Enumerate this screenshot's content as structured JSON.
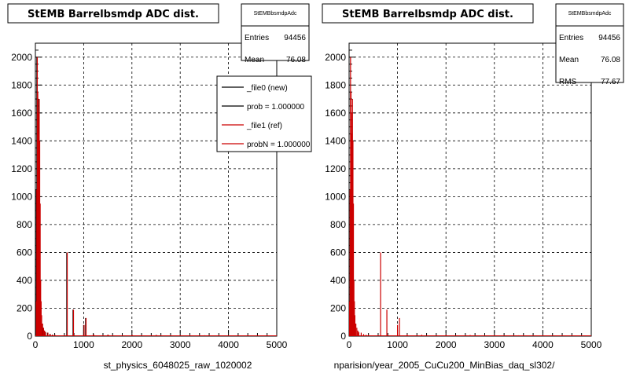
{
  "panels": [
    {
      "title": "StEMB Barrelbsmdp ADC dist.",
      "footer": "st_physics_6048025_raw_1020002",
      "stats": {
        "header": "StEMBbsmdpAdc",
        "rows": [
          {
            "label": "Entries",
            "value": "94456"
          },
          {
            "label": "Mean",
            "value": "76.08"
          }
        ]
      },
      "legend": [
        {
          "label": "_file0 (new)",
          "color": "#000000"
        },
        {
          "label": "prob = 1.000000",
          "color": "#000000"
        },
        {
          "label": "_file1 (ref)",
          "color": "#cc0000"
        },
        {
          "label": "probN = 1.000000",
          "color": "#cc0000"
        }
      ]
    },
    {
      "title": "StEMB Barrelbsmdp ADC dist.",
      "footer": "nparision/year_2005_CuCu200_MinBias_daq_sl302/",
      "stats": {
        "header": "StEMBbsmdpAdc",
        "rows": [
          {
            "label": "Entries",
            "value": "94456"
          },
          {
            "label": "Mean",
            "value": "76.08"
          },
          {
            "label": "RMS",
            "value": "77.67"
          }
        ]
      },
      "legend": []
    }
  ],
  "chart_data": [
    {
      "type": "bar",
      "title": "StEMB Barrelbsmdp ADC dist.",
      "xlabel": "st_physics_6048025_raw_1020002",
      "ylabel": "",
      "xlim": [
        0,
        5000
      ],
      "ylim": [
        0,
        2100
      ],
      "xticks": [
        0,
        1000,
        2000,
        3000,
        4000,
        5000
      ],
      "yticks": [
        0,
        200,
        400,
        600,
        800,
        1000,
        1200,
        1400,
        1600,
        1800,
        2000
      ],
      "grid": true,
      "series": [
        {
          "name": "_file0 (new)",
          "color": "#000000",
          "x": [
            10,
            20,
            30,
            40,
            50,
            60,
            70,
            80,
            90,
            100,
            110,
            120,
            140,
            160,
            180,
            200,
            250,
            300,
            350,
            400,
            650,
            780,
            1000,
            1040,
            1200,
            1500,
            2000,
            2500,
            3000,
            3500,
            4000,
            4500
          ],
          "y": [
            250,
            1050,
            2000,
            1750,
            1600,
            1450,
            1700,
            1400,
            950,
            400,
            250,
            150,
            90,
            60,
            40,
            30,
            25,
            15,
            10,
            8,
            600,
            190,
            80,
            130,
            12,
            10,
            8,
            8,
            6,
            6,
            5,
            5
          ]
        },
        {
          "name": "_file1 (ref)",
          "color": "#cc0000",
          "x": [
            10,
            20,
            30,
            40,
            50,
            60,
            70,
            80,
            90,
            100,
            110,
            120,
            140,
            160,
            180,
            200,
            250,
            300,
            350,
            400,
            650,
            780,
            1000,
            1040,
            1200,
            1500,
            2000,
            2500,
            3000,
            3500,
            4000,
            4500
          ],
          "y": [
            250,
            1050,
            2000,
            1750,
            1600,
            1450,
            1700,
            1400,
            950,
            400,
            250,
            150,
            90,
            60,
            40,
            30,
            25,
            15,
            10,
            8,
            600,
            190,
            80,
            130,
            12,
            10,
            8,
            8,
            6,
            6,
            5,
            5
          ]
        }
      ]
    },
    {
      "type": "bar",
      "title": "StEMB Barrelbsmdp ADC dist.",
      "xlabel": "nparision/year_2005_CuCu200_MinBias_daq_sl302/",
      "ylabel": "",
      "xlim": [
        0,
        5000
      ],
      "ylim": [
        0,
        2100
      ],
      "xticks": [
        0,
        1000,
        2000,
        3000,
        4000,
        5000
      ],
      "yticks": [
        0,
        200,
        400,
        600,
        800,
        1000,
        1200,
        1400,
        1600,
        1800,
        2000
      ],
      "grid": true,
      "series": [
        {
          "name": "",
          "color": "#cc0000",
          "x": [
            10,
            20,
            30,
            40,
            50,
            60,
            70,
            80,
            90,
            100,
            110,
            120,
            140,
            160,
            180,
            200,
            250,
            300,
            350,
            400,
            650,
            780,
            1000,
            1040,
            1200,
            1500,
            2000,
            2500,
            3000,
            3500,
            4000,
            4500
          ],
          "y": [
            250,
            1050,
            2000,
            1750,
            1600,
            1450,
            1700,
            1400,
            950,
            400,
            250,
            150,
            90,
            60,
            40,
            30,
            25,
            15,
            10,
            8,
            600,
            190,
            80,
            130,
            12,
            10,
            8,
            8,
            6,
            6,
            5,
            5
          ]
        }
      ]
    }
  ]
}
